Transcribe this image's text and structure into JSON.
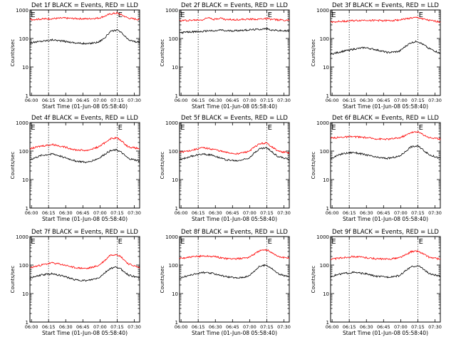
{
  "figure": {
    "x_axis_title": "Start Time (01-Jun-08 05:58:40)",
    "y_axis_title": "Counts/sec",
    "x_tick_labels": [
      "06:00",
      "06:15",
      "06:30",
      "06:45",
      "07:00",
      "07:15",
      "07:30"
    ],
    "y_tick_labels": [
      "1",
      "10",
      "100",
      "1000"
    ],
    "marker_label": "E",
    "colors": {
      "events": "#000000",
      "lld": "#ff0000",
      "axes": "#000000"
    }
  },
  "chart_data": [
    {
      "type": "line",
      "title": "Det 1f BLACK = Events, RED = LLD",
      "x_range_minutes": [
        0,
        96
      ],
      "ylim": [
        1,
        1000
      ],
      "yscale": "log",
      "xlabel": "Start Time (01-Jun-08 05:58:40)",
      "ylabel": "Counts/sec",
      "x_minutes": [
        0,
        10,
        20,
        30,
        40,
        50,
        60,
        66,
        70,
        76,
        80,
        86,
        96
      ],
      "series": [
        {
          "name": "Events",
          "color": "#000000",
          "values": [
            70,
            80,
            90,
            80,
            70,
            65,
            75,
            110,
            170,
            200,
            160,
            90,
            70
          ]
        },
        {
          "name": "LLD",
          "color": "#ff0000",
          "values": [
            460,
            480,
            500,
            520,
            500,
            490,
            520,
            620,
            720,
            780,
            680,
            520,
            460
          ]
        }
      ],
      "vlines_minutes": [
        16.3,
        76.3
      ],
      "marker_minute": 76.3
    },
    {
      "type": "line",
      "title": "Det 2f BLACK = Events, RED = LLD",
      "x_range_minutes": [
        0,
        96
      ],
      "ylim": [
        1,
        1000
      ],
      "yscale": "log",
      "xlabel": "Start Time (01-Jun-08 05:58:40)",
      "ylabel": "Counts/sec",
      "x_minutes": [
        0,
        10,
        20,
        26,
        30,
        36,
        40,
        50,
        60,
        70,
        76,
        80,
        86,
        96
      ],
      "series": [
        {
          "name": "Events",
          "color": "#000000",
          "values": [
            160,
            170,
            175,
            190,
            180,
            200,
            185,
            190,
            200,
            210,
            220,
            200,
            190,
            180
          ]
        },
        {
          "name": "LLD",
          "color": "#ff0000",
          "values": [
            420,
            440,
            450,
            560,
            470,
            520,
            460,
            460,
            470,
            480,
            500,
            470,
            450,
            440
          ]
        }
      ],
      "vlines_minutes": [
        16.3,
        76.3
      ],
      "marker_minute": 76.3
    },
    {
      "type": "line",
      "title": "Det 3f BLACK = Events, RED = LLD",
      "x_range_minutes": [
        0,
        96
      ],
      "ylim": [
        1,
        1000
      ],
      "yscale": "log",
      "xlabel": "Start Time (01-Jun-08 05:58:40)",
      "ylabel": "Counts/sec",
      "x_minutes": [
        0,
        10,
        20,
        30,
        40,
        50,
        60,
        66,
        70,
        76,
        80,
        86,
        96
      ],
      "series": [
        {
          "name": "Events",
          "color": "#000000",
          "values": [
            28,
            35,
            42,
            48,
            40,
            32,
            35,
            55,
            70,
            80,
            65,
            45,
            30
          ]
        },
        {
          "name": "LLD",
          "color": "#ff0000",
          "values": [
            380,
            400,
            420,
            440,
            430,
            420,
            450,
            490,
            520,
            540,
            500,
            430,
            380
          ]
        }
      ],
      "vlines_minutes": [
        16.3,
        76.3
      ],
      "marker_minute": 76.3
    },
    {
      "type": "line",
      "title": "Det 4f BLACK = Events, RED = LLD",
      "x_range_minutes": [
        0,
        96
      ],
      "ylim": [
        1,
        1000
      ],
      "yscale": "log",
      "xlabel": "Start Time (01-Jun-08 05:58:40)",
      "ylabel": "Counts/sec",
      "x_minutes": [
        0,
        10,
        20,
        30,
        40,
        50,
        60,
        66,
        70,
        76,
        80,
        86,
        96
      ],
      "series": [
        {
          "name": "Events",
          "color": "#000000",
          "values": [
            50,
            70,
            80,
            60,
            45,
            40,
            55,
            80,
            100,
            110,
            90,
            55,
            45
          ]
        },
        {
          "name": "LLD",
          "color": "#ff0000",
          "values": [
            120,
            150,
            170,
            140,
            110,
            105,
            140,
            200,
            270,
            290,
            230,
            140,
            120
          ]
        }
      ],
      "vlines_minutes": [
        16.3,
        76.3
      ],
      "marker_minute": 76.3
    },
    {
      "type": "line",
      "title": "Det 5f BLACK = Events, RED = LLD",
      "x_range_minutes": [
        0,
        96
      ],
      "ylim": [
        1,
        1000
      ],
      "yscale": "log",
      "xlabel": "Start Time (01-Jun-08 05:58:40)",
      "ylabel": "Counts/sec",
      "x_minutes": [
        0,
        10,
        20,
        30,
        40,
        50,
        60,
        66,
        70,
        76,
        80,
        86,
        96
      ],
      "series": [
        {
          "name": "Events",
          "color": "#000000",
          "values": [
            50,
            65,
            80,
            70,
            50,
            45,
            55,
            90,
            120,
            130,
            100,
            65,
            50
          ]
        },
        {
          "name": "LLD",
          "color": "#ff0000",
          "values": [
            90,
            105,
            130,
            115,
            90,
            80,
            95,
            140,
            180,
            190,
            150,
            100,
            85
          ]
        }
      ],
      "vlines_minutes": [
        16.3,
        76.3
      ],
      "marker_minute": 76.3
    },
    {
      "type": "line",
      "title": "Det 6f BLACK = Events, RED = LLD",
      "x_range_minutes": [
        0,
        96
      ],
      "ylim": [
        1,
        1000
      ],
      "yscale": "log",
      "xlabel": "Start Time (01-Jun-08 05:58:40)",
      "ylabel": "Counts/sec",
      "x_minutes": [
        0,
        10,
        20,
        30,
        40,
        50,
        60,
        66,
        70,
        76,
        80,
        86,
        96
      ],
      "series": [
        {
          "name": "Events",
          "color": "#000000",
          "values": [
            55,
            80,
            90,
            75,
            60,
            55,
            65,
            100,
            140,
            150,
            120,
            75,
            55
          ]
        },
        {
          "name": "LLD",
          "color": "#ff0000",
          "values": [
            280,
            310,
            320,
            300,
            270,
            260,
            290,
            360,
            450,
            470,
            400,
            300,
            260
          ]
        }
      ],
      "vlines_minutes": [
        16.3,
        76.3
      ],
      "marker_minute": 76.3
    },
    {
      "type": "line",
      "title": "Det 7f BLACK = Events, RED = LLD",
      "x_range_minutes": [
        0,
        96
      ],
      "ylim": [
        1,
        1000
      ],
      "yscale": "log",
      "xlabel": "Start Time (01-Jun-08 05:58:40)",
      "ylabel": "Counts/sec",
      "x_minutes": [
        0,
        10,
        20,
        30,
        40,
        50,
        60,
        66,
        70,
        76,
        80,
        86,
        96
      ],
      "series": [
        {
          "name": "Events",
          "color": "#000000",
          "values": [
            35,
            45,
            50,
            40,
            30,
            28,
            35,
            55,
            75,
            85,
            70,
            45,
            35
          ]
        },
        {
          "name": "LLD",
          "color": "#ff0000",
          "values": [
            80,
            100,
            120,
            100,
            80,
            75,
            95,
            150,
            220,
            240,
            190,
            110,
            80
          ]
        }
      ],
      "vlines_minutes": [
        16.3,
        76.3
      ],
      "marker_minute": 76.3
    },
    {
      "type": "line",
      "title": "Det 8f BLACK = Events, RED = LLD",
      "x_range_minutes": [
        0,
        96
      ],
      "ylim": [
        1,
        1000
      ],
      "yscale": "log",
      "xlabel": "Start Time (01-Jun-08 05:58:40)",
      "ylabel": "Counts/sec",
      "x_minutes": [
        0,
        10,
        20,
        30,
        40,
        50,
        60,
        66,
        70,
        76,
        80,
        86,
        96
      ],
      "series": [
        {
          "name": "Events",
          "color": "#000000",
          "values": [
            35,
            45,
            55,
            50,
            40,
            35,
            40,
            65,
            90,
            100,
            80,
            50,
            38
          ]
        },
        {
          "name": "LLD",
          "color": "#ff0000",
          "values": [
            170,
            190,
            210,
            200,
            170,
            165,
            185,
            250,
            320,
            340,
            290,
            200,
            170
          ]
        }
      ],
      "vlines_minutes": [
        16.3,
        76.3
      ],
      "marker_minute": 76.3
    },
    {
      "type": "line",
      "title": "Det 9f BLACK = Events, RED = LLD",
      "x_range_minutes": [
        0,
        96
      ],
      "ylim": [
        1,
        1000
      ],
      "yscale": "log",
      "xlabel": "Start Time (01-Jun-08 05:58:40)",
      "ylabel": "Counts/sec",
      "x_minutes": [
        0,
        10,
        20,
        30,
        40,
        50,
        60,
        66,
        70,
        76,
        80,
        86,
        96
      ],
      "series": [
        {
          "name": "Events",
          "color": "#000000",
          "values": [
            40,
            50,
            55,
            50,
            40,
            38,
            42,
            65,
            85,
            95,
            80,
            50,
            40
          ]
        },
        {
          "name": "LLD",
          "color": "#ff0000",
          "values": [
            160,
            180,
            200,
            185,
            165,
            160,
            180,
            230,
            290,
            310,
            260,
            190,
            160
          ]
        }
      ],
      "vlines_minutes": [
        16.3,
        76.3
      ],
      "marker_minute": 76.3
    }
  ]
}
